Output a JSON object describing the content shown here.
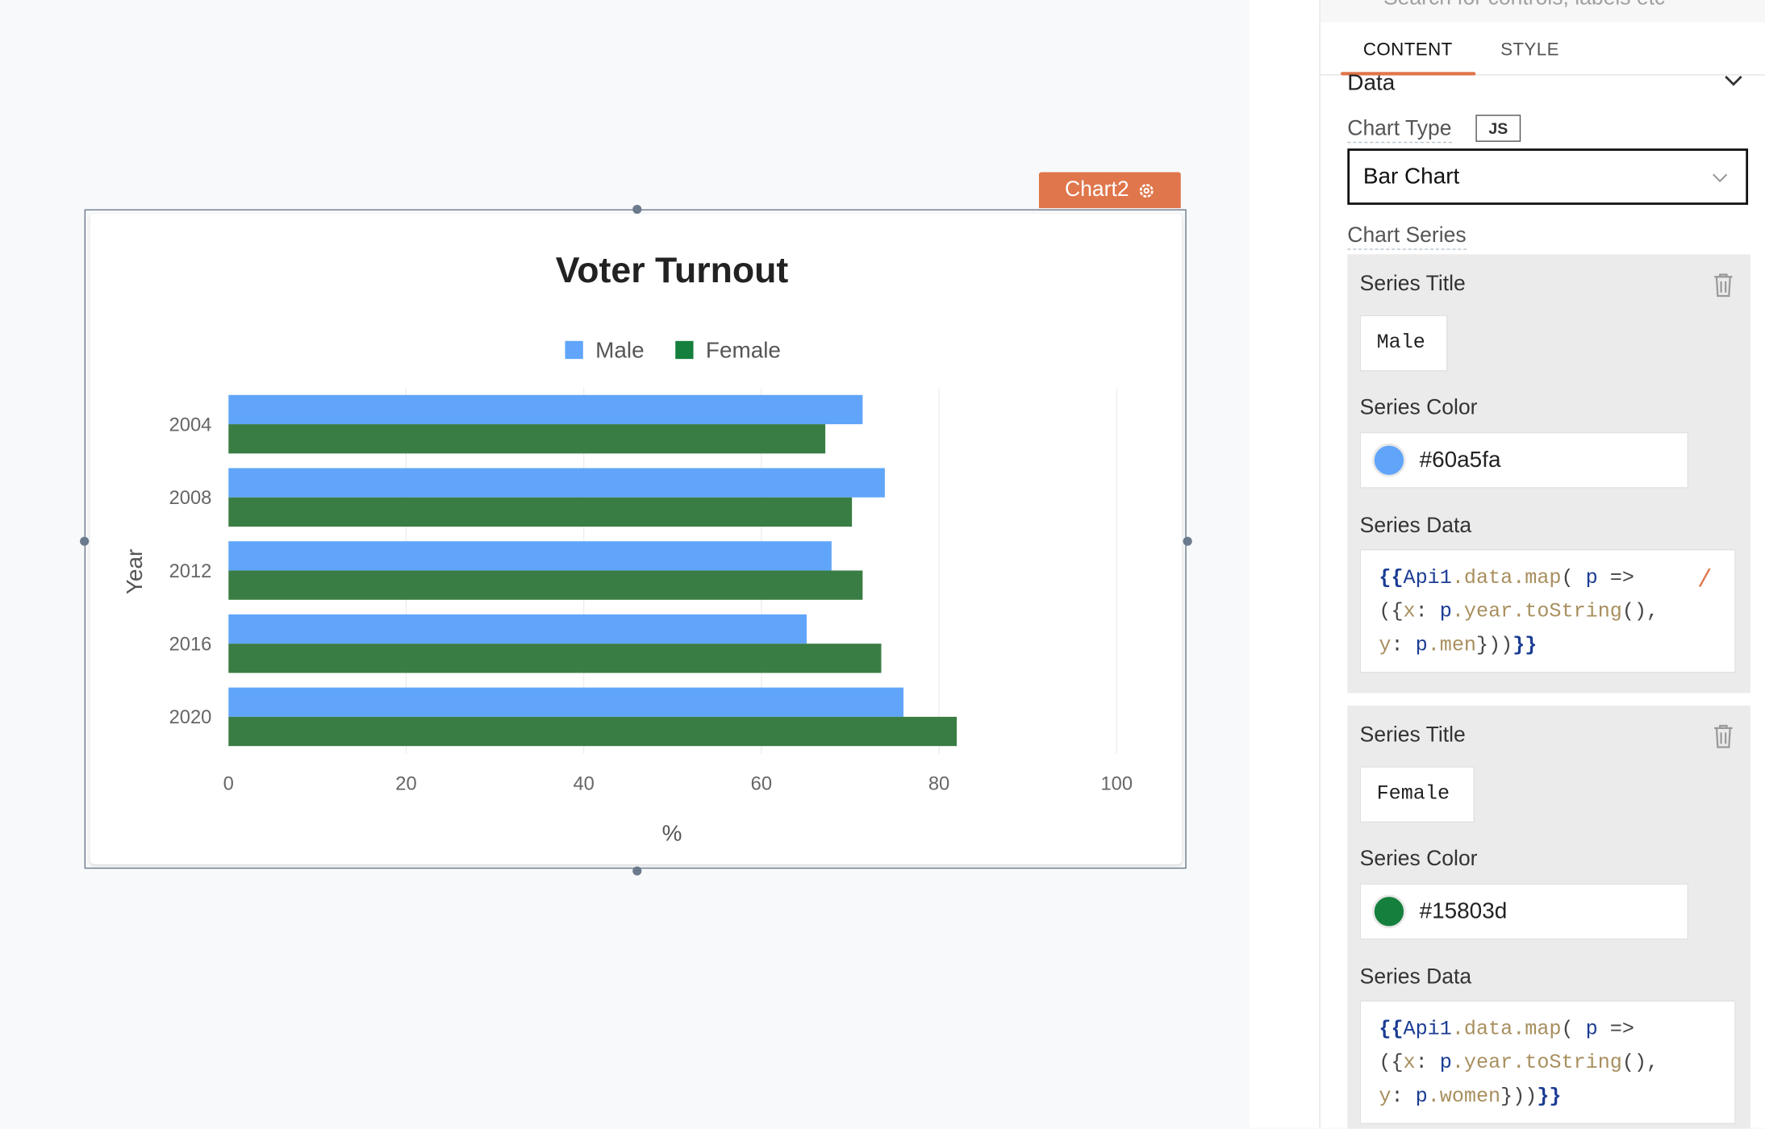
{
  "widget": {
    "name": "Chart2",
    "settings_icon": "gear-icon"
  },
  "chart_data": {
    "type": "bar",
    "orientation": "horizontal",
    "title": "Voter Turnout",
    "xlabel": "%",
    "ylabel": "Year",
    "categories": [
      "2004",
      "2008",
      "2012",
      "2016",
      "2020"
    ],
    "xlim": [
      0,
      100
    ],
    "xticks": [
      "0",
      "20",
      "40",
      "60",
      "80",
      "100"
    ],
    "grid": true,
    "legend_placement": "top",
    "series": [
      {
        "name": "Male",
        "color": "#60a5fa",
        "values": [
          71.4,
          73.9,
          67.9,
          65.1,
          76.0
        ]
      },
      {
        "name": "Female",
        "color": "#15803d",
        "values": [
          67.2,
          70.2,
          71.4,
          73.5,
          82.0
        ]
      }
    ]
  },
  "panel": {
    "search_placeholder": "Search for controls, labels etc",
    "tabs": [
      {
        "label": "CONTENT",
        "active": true
      },
      {
        "label": "STYLE",
        "active": false
      }
    ],
    "section_title": "Data",
    "chart_type_label": "Chart Type",
    "js_label": "JS",
    "chart_type_value": "Bar Chart",
    "chart_series_label": "Chart Series",
    "series": [
      {
        "title_label": "Series Title",
        "title": "Male",
        "color_label": "Series Color",
        "color": "#60a5fa",
        "data_label": "Series Data",
        "code": [
          "{{",
          "Api1",
          ".data.map",
          "( ",
          "p",
          " =>",
          "({",
          "x",
          ": ",
          "p",
          ".year.toString",
          "(),",
          "y",
          ": ",
          "p",
          ".men",
          "}))",
          "}}"
        ]
      },
      {
        "title_label": "Series Title",
        "title": "Female",
        "color_label": "Series Color",
        "color": "#15803d",
        "data_label": "Series Data",
        "code": [
          "{{",
          "Api1",
          ".data.map",
          "( ",
          "p",
          " =>",
          "({",
          "x",
          ": ",
          "p",
          ".year.toString",
          "(),",
          "y",
          ": ",
          "p",
          ".women",
          "}))",
          "}}"
        ]
      }
    ]
  }
}
